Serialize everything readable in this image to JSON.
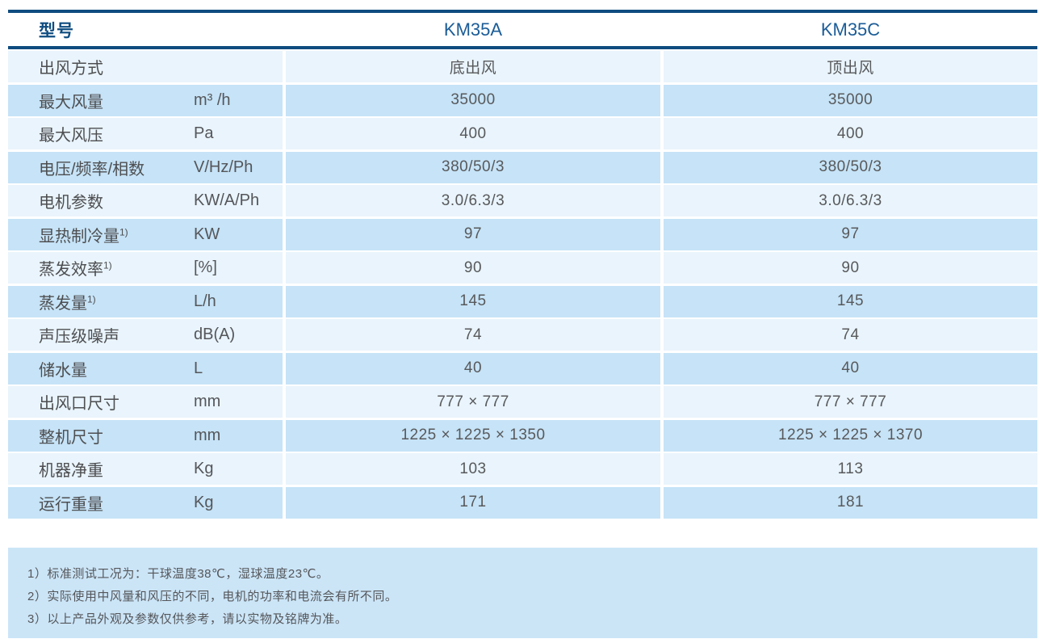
{
  "table": {
    "header": {
      "label": "型号",
      "model_a": "KM35A",
      "model_c": "KM35C"
    },
    "rows": [
      {
        "label": "出风方式",
        "note_ref": "",
        "unit": "",
        "km35a": "底出风",
        "km35c": "顶出风"
      },
      {
        "label": "最大风量",
        "note_ref": "",
        "unit": "m³ /h",
        "km35a": "35000",
        "km35c": "35000"
      },
      {
        "label": "最大风压",
        "note_ref": "",
        "unit": "Pa",
        "km35a": "400",
        "km35c": "400"
      },
      {
        "label": "电压/频率/相数",
        "note_ref": "",
        "unit": "V/Hz/Ph",
        "km35a": "380/50/3",
        "km35c": "380/50/3"
      },
      {
        "label": "电机参数",
        "note_ref": "",
        "unit": "KW/A/Ph",
        "km35a": "3.0/6.3/3",
        "km35c": "3.0/6.3/3"
      },
      {
        "label": "显热制冷量",
        "note_ref": "1)",
        "unit": "KW",
        "km35a": "97",
        "km35c": "97"
      },
      {
        "label": "蒸发效率",
        "note_ref": "1)",
        "unit": "[%]",
        "km35a": "90",
        "km35c": "90"
      },
      {
        "label": "蒸发量",
        "note_ref": "1)",
        "unit": "L/h",
        "km35a": "145",
        "km35c": "145"
      },
      {
        "label": "声压级噪声",
        "note_ref": "",
        "unit": "dB(A)",
        "km35a": "74",
        "km35c": "74"
      },
      {
        "label": "储水量",
        "note_ref": "",
        "unit": "L",
        "km35a": "40",
        "km35c": "40"
      },
      {
        "label": "出风口尺寸",
        "note_ref": "",
        "unit": "mm",
        "km35a": "777 × 777",
        "km35c": "777 × 777"
      },
      {
        "label": "整机尺寸",
        "note_ref": "",
        "unit": "mm",
        "km35a": "1225 × 1225 × 1350",
        "km35c": "1225 × 1225 × 1370"
      },
      {
        "label": "机器净重",
        "note_ref": "",
        "unit": "Kg",
        "km35a": "103",
        "km35c": "113"
      },
      {
        "label": "运行重量",
        "note_ref": "",
        "unit": "Kg",
        "km35a": "171",
        "km35c": "181"
      }
    ]
  },
  "notes": [
    "1）标准测试工况为：干球温度38℃，湿球温度23℃。",
    "2）实际使用中风量和风压的不同，电机的功率和电流会有所不同。",
    "3）以上产品外观及参数仅供参考，请以实物及铭牌为准。"
  ],
  "colors": {
    "rule_navy": "#0f4c80",
    "model_blue": "#1b5c97",
    "row_light": "#e9f4fc",
    "row_dark": "#c6e3f7",
    "notes_bg": "#cbe5f7",
    "text_gray": "#58595b"
  }
}
